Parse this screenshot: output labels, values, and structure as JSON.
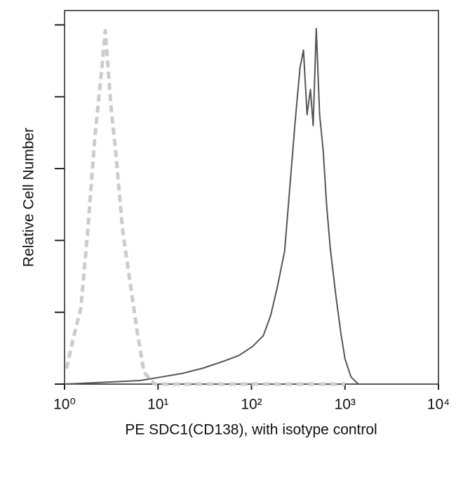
{
  "chart_data": {
    "type": "line",
    "xlabel": "PE SDC1(CD138), with isotype control",
    "ylabel": "Relative Cell Number",
    "xscale": "log",
    "xlim": [
      1,
      10000
    ],
    "xticks": [
      {
        "value": 1,
        "label": "10⁰"
      },
      {
        "value": 10,
        "label": "10¹"
      },
      {
        "value": 100,
        "label": "10²"
      },
      {
        "value": 1000,
        "label": "10³"
      },
      {
        "value": 10000,
        "label": "10⁴"
      }
    ],
    "ylim": [
      0,
      104
    ],
    "yticks": [
      0,
      20,
      40,
      60,
      80,
      100
    ],
    "series": [
      {
        "color": "#cccccc",
        "dashed": true,
        "x": [
          1.05,
          1.25,
          1.49,
          1.77,
          2.1,
          2.5,
          2.73,
          3.13,
          3.54,
          4.2,
          5.0,
          5.95,
          7.07,
          9.2,
          1000
        ],
        "values": [
          4.3,
          13.1,
          21,
          42.5,
          68,
          87.6,
          98.4,
          77.8,
          64,
          42.5,
          28.8,
          15.1,
          3.3,
          0,
          0
        ]
      },
      {
        "color": "#555555",
        "dashed": false,
        "x": [
          1,
          2.73,
          6.5,
          10.9,
          18.3,
          30.8,
          51.8,
          73.6,
          103,
          134,
          160,
          189,
          226,
          254,
          293,
          330,
          360,
          393,
          427,
          457,
          493,
          535,
          585,
          635,
          695,
          796,
          905,
          1000,
          1160,
          1390
        ],
        "values": [
          0,
          0.5,
          1,
          2,
          3,
          4.5,
          6.5,
          8,
          10.5,
          13.5,
          19,
          27,
          37,
          53,
          73,
          88,
          93,
          75,
          82,
          72,
          99,
          75,
          65,
          50,
          38,
          25,
          14,
          7,
          2,
          0
        ]
      }
    ]
  }
}
